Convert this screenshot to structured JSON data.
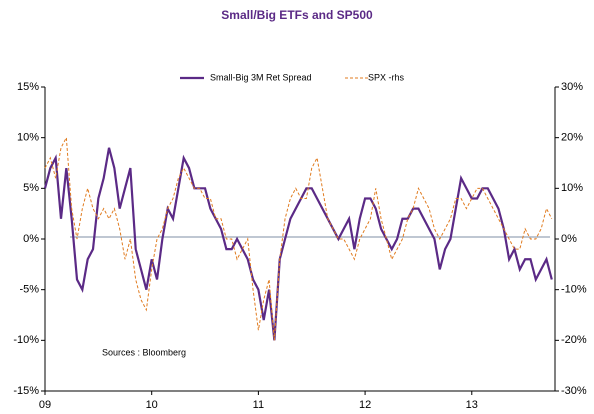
{
  "chart_data": {
    "type": "line",
    "title": "Small/Big ETFs and SP500",
    "annotation": "Sources  : Bloomberg",
    "x": [
      2009,
      2009.05,
      2009.1,
      2009.15,
      2009.2,
      2009.25,
      2009.3,
      2009.35,
      2009.4,
      2009.45,
      2009.5,
      2009.55,
      2009.6,
      2009.65,
      2009.7,
      2009.75,
      2009.8,
      2009.85,
      2009.9,
      2009.95,
      2010,
      2010.05,
      2010.1,
      2010.15,
      2010.2,
      2010.25,
      2010.3,
      2010.35,
      2010.4,
      2010.45,
      2010.5,
      2010.55,
      2010.6,
      2010.65,
      2010.7,
      2010.75,
      2010.8,
      2010.85,
      2010.9,
      2010.95,
      2011,
      2011.05,
      2011.1,
      2011.15,
      2011.2,
      2011.25,
      2011.3,
      2011.35,
      2011.4,
      2011.45,
      2011.5,
      2011.55,
      2011.6,
      2011.65,
      2011.7,
      2011.75,
      2011.8,
      2011.85,
      2011.9,
      2011.95,
      2012,
      2012.05,
      2012.1,
      2012.15,
      2012.2,
      2012.25,
      2012.3,
      2012.35,
      2012.4,
      2012.45,
      2012.5,
      2012.55,
      2012.6,
      2012.65,
      2012.7,
      2012.75,
      2012.8,
      2012.85,
      2012.9,
      2012.95,
      2013,
      2013.05,
      2013.1,
      2013.15,
      2013.2,
      2013.25,
      2013.3,
      2013.35,
      2013.4,
      2013.45,
      2013.5,
      2013.55,
      2013.6,
      2013.65,
      2013.7,
      2013.75
    ],
    "series": [
      {
        "name": "Small-Big 3M Ret Spread",
        "color": "#5b2a86",
        "dashed": false,
        "axis": "y",
        "values": [
          5,
          7,
          8,
          2,
          7,
          2,
          -4,
          -5,
          -2,
          -1,
          4,
          6,
          9,
          7,
          3,
          5,
          7,
          -1,
          -3,
          -5,
          -2,
          -4,
          0,
          3,
          2,
          5,
          8,
          7,
          5,
          5,
          5,
          3,
          2,
          1,
          -1,
          -1,
          0,
          -1,
          -2,
          -4,
          -5,
          -8,
          -5,
          -10,
          -2,
          0,
          2,
          3,
          4,
          5,
          5,
          4,
          3,
          2,
          1,
          0,
          1,
          2,
          -1,
          2,
          4,
          4,
          3,
          1,
          0,
          -1,
          0,
          2,
          2,
          3,
          3,
          2,
          1,
          0,
          -3,
          -1,
          0,
          3,
          6,
          5,
          4,
          4,
          5,
          5,
          4,
          3,
          1,
          -2,
          -1,
          -3,
          -2,
          -2,
          -4,
          -3,
          -2,
          -4
        ]
      },
      {
        "name": "SPX -rhs",
        "color": "#e07b1f",
        "dashed": true,
        "axis": "y2",
        "values": [
          14,
          16,
          12,
          18,
          20,
          6,
          0,
          6,
          10,
          6,
          4,
          6,
          4,
          6,
          2,
          -4,
          0,
          -8,
          -12,
          -14,
          -6,
          0,
          2,
          6,
          8,
          12,
          14,
          12,
          10,
          10,
          8,
          8,
          4,
          4,
          0,
          0,
          -4,
          -2,
          0,
          -10,
          -18,
          -12,
          -8,
          -20,
          -4,
          4,
          8,
          10,
          8,
          8,
          14,
          16,
          10,
          4,
          2,
          0,
          0,
          -2,
          -4,
          0,
          2,
          4,
          10,
          4,
          0,
          -4,
          -2,
          0,
          4,
          6,
          10,
          8,
          6,
          2,
          0,
          2,
          4,
          8,
          8,
          6,
          8,
          10,
          10,
          8,
          6,
          4,
          2,
          0,
          -2,
          -2,
          2,
          0,
          0,
          2,
          6,
          4
        ]
      }
    ],
    "xlim": [
      2009,
      2013.78
    ],
    "xticks": [
      {
        "value": 2009,
        "label": "09"
      },
      {
        "value": 2010,
        "label": "10"
      },
      {
        "value": 2011,
        "label": "11"
      },
      {
        "value": 2012,
        "label": "12"
      },
      {
        "value": 2013,
        "label": "13"
      }
    ],
    "ylim": [
      -15,
      15
    ],
    "yticks": [
      {
        "value": -15,
        "label": "-15%"
      },
      {
        "value": -10,
        "label": "-10%"
      },
      {
        "value": -5,
        "label": "-5%"
      },
      {
        "value": 0,
        "label": "0%"
      },
      {
        "value": 5,
        "label": "5%"
      },
      {
        "value": 10,
        "label": "10%"
      },
      {
        "value": 15,
        "label": "15%"
      }
    ],
    "y2lim": [
      -30,
      30
    ],
    "y2ticks": [
      {
        "value": -30,
        "label": "-30%"
      },
      {
        "value": -20,
        "label": "-20%"
      },
      {
        "value": -10,
        "label": "-10%"
      },
      {
        "value": 0,
        "label": "0%"
      },
      {
        "value": 10,
        "label": "10%"
      },
      {
        "value": 20,
        "label": "20%"
      },
      {
        "value": 30,
        "label": "30%"
      }
    ],
    "zero_line": true,
    "legend": "top"
  }
}
